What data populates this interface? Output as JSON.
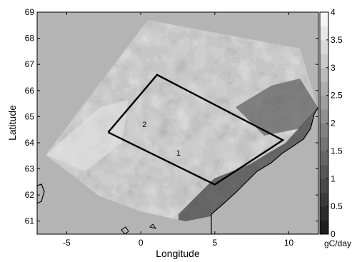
{
  "chart_data": {
    "type": "heatmap",
    "xlabel": "Longitude",
    "ylabel": "Latitude",
    "xlim": [
      -7,
      12
    ],
    "ylim": [
      60.5,
      69
    ],
    "x_ticks": [
      -5,
      0,
      5,
      10
    ],
    "y_ticks": [
      61,
      62,
      63,
      64,
      65,
      66,
      67,
      68,
      69
    ],
    "colorbar": {
      "unit": "gC/day",
      "min": 0,
      "max": 4,
      "ticks": [
        0,
        0.5,
        1,
        1.5,
        2,
        2.5,
        3,
        3.5,
        4
      ],
      "levels": 16,
      "colormap": "grayscale"
    },
    "regions": [
      {
        "label": "1",
        "label_pos": [
          2.4,
          63.5
        ],
        "polygon": [
          [
            -2.2,
            64.4
          ],
          [
            1.1,
            66.6
          ],
          [
            9.6,
            64.1
          ],
          [
            5.0,
            62.4
          ],
          [
            -2.2,
            64.4
          ]
        ]
      },
      {
        "label": "2",
        "label_pos": [
          0.1,
          64.6
        ],
        "polygon": []
      }
    ],
    "colors": {
      "background": "#b4b4b4",
      "coastline": "#000000",
      "box": "#000000"
    }
  }
}
